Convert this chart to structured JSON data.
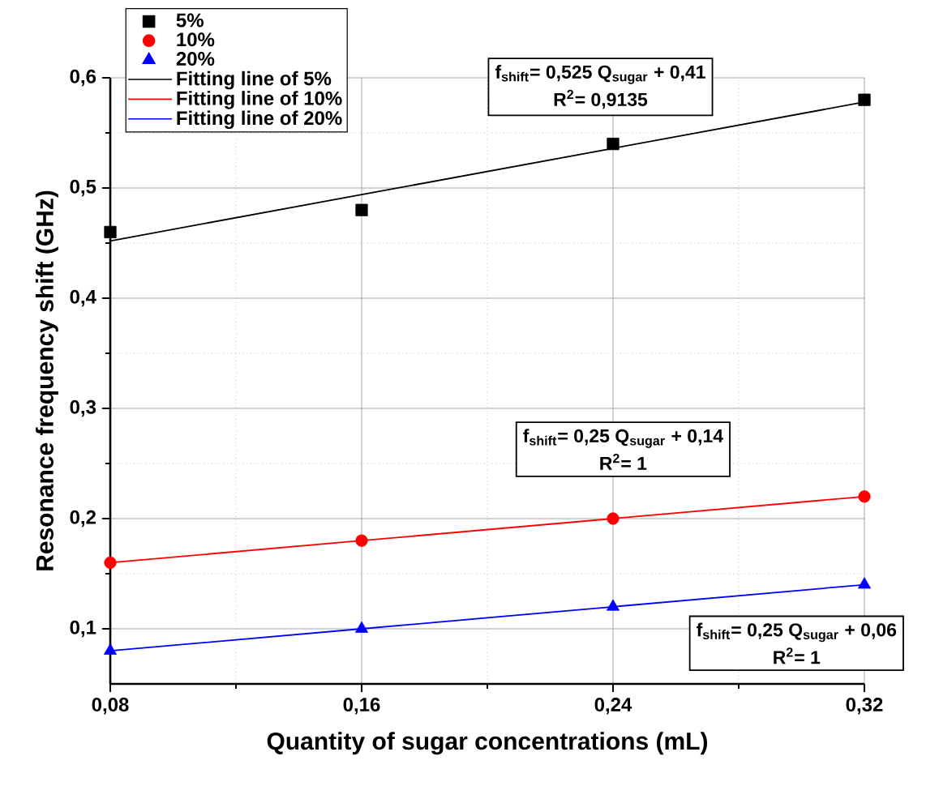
{
  "chart_data": {
    "type": "scatter",
    "xlabel": "Quantity of sugar concentrations (mL)",
    "ylabel": "Resonance frequency shift (GHz)",
    "x": [
      0.08,
      0.16,
      0.24,
      0.32
    ],
    "series": [
      {
        "name": "5%",
        "color": "#000000",
        "marker": "square",
        "values": [
          0.46,
          0.48,
          0.54,
          0.58
        ]
      },
      {
        "name": "10%",
        "color": "#ff0000",
        "marker": "circle",
        "values": [
          0.16,
          0.18,
          0.2,
          0.22
        ]
      },
      {
        "name": "20%",
        "color": "#0000ff",
        "marker": "triangle",
        "values": [
          0.08,
          0.1,
          0.12,
          0.14
        ]
      },
      {
        "name": "Fitting line of 5%",
        "type": "line",
        "color": "#000000",
        "marker": "none",
        "values": [
          0.452,
          0.494,
          0.536,
          0.578
        ]
      },
      {
        "name": "Fitting line of 10%",
        "type": "line",
        "color": "#ff0000",
        "marker": "none",
        "values": [
          0.16,
          0.18,
          0.2,
          0.22
        ]
      },
      {
        "name": "Fitting line of 20%",
        "type": "line",
        "color": "#0000ff",
        "marker": "none",
        "values": [
          0.08,
          0.1,
          0.12,
          0.14
        ]
      }
    ],
    "xlim": [
      0.08,
      0.32
    ],
    "ylim": [
      0.05,
      0.6
    ],
    "xticks": [
      {
        "value": 0.08,
        "label": "0,08"
      },
      {
        "value": 0.16,
        "label": "0,16"
      },
      {
        "value": 0.24,
        "label": "0,24"
      },
      {
        "value": 0.32,
        "label": "0,32"
      }
    ],
    "yticks": [
      {
        "value": 0.1,
        "label": "0,1"
      },
      {
        "value": 0.2,
        "label": "0,2"
      },
      {
        "value": 0.3,
        "label": "0,3"
      },
      {
        "value": 0.4,
        "label": "0,4"
      },
      {
        "value": 0.5,
        "label": "0,5"
      },
      {
        "value": 0.6,
        "label": "0,6"
      }
    ],
    "grid": true,
    "legend": "top left",
    "annotations": [
      "f$_{shift}$= 0,525 Q$_{sugar}$ + 0,41",
      "R$^{2}$= 0,9135",
      "f$_{shift}$= 0,25 Q$_{sugar}$ + 0,14",
      "R$^{2}$= 1",
      "f$_{shift}$= 0,25 Q$_{sugar}$ + 0,06",
      "R$^{2}$= 1"
    ]
  }
}
